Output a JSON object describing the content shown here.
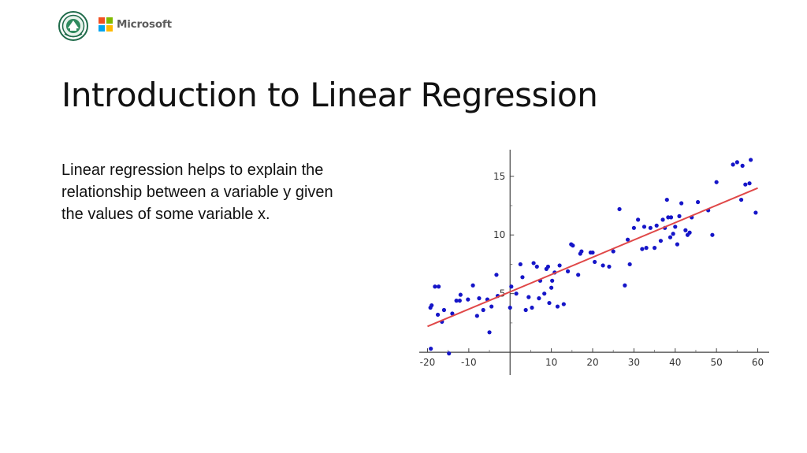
{
  "header": {
    "logos": [
      {
        "name": "seal-logo",
        "icon": "circular-seal-logo"
      },
      {
        "name": "microsoft-logo",
        "text": "Microsoft",
        "colors": [
          "#f25022",
          "#7fba00",
          "#00a4ef",
          "#ffb900"
        ]
      }
    ]
  },
  "slide": {
    "title": "Introduction to Linear Regression",
    "body": "Linear regression helps to explain the relationship between a variable y given the values of some variable x."
  },
  "chart_data": {
    "type": "scatter",
    "title": "",
    "xlabel": "",
    "ylabel": "",
    "xlim": [
      -22,
      62
    ],
    "ylim": [
      -1,
      17
    ],
    "x_ticks": [
      -20,
      -10,
      10,
      20,
      30,
      40,
      50,
      60
    ],
    "x_tick_labels": [
      "-20",
      "-10",
      "10",
      "20",
      "30",
      "40",
      "50",
      "60"
    ],
    "y_ticks": [
      5,
      10,
      15
    ],
    "y_tick_labels": [
      "5",
      "10",
      "15"
    ],
    "grid": false,
    "point_color": "#1515c8",
    "line_color": "#e04848",
    "regression_line": {
      "x": [
        -20,
        60
      ],
      "y": [
        2.2,
        14.0
      ]
    },
    "points": [
      [
        -19.3,
        3.8
      ],
      [
        -19.0,
        4.0
      ],
      [
        -18.2,
        5.6
      ],
      [
        -17.3,
        5.6
      ],
      [
        -17.5,
        3.2
      ],
      [
        -16.5,
        2.6
      ],
      [
        -16.0,
        3.6
      ],
      [
        -14.0,
        3.3
      ],
      [
        -13.0,
        4.4
      ],
      [
        -12.2,
        4.4
      ],
      [
        -12.0,
        4.9
      ],
      [
        -10.2,
        4.5
      ],
      [
        -9.0,
        5.7
      ],
      [
        -8.0,
        3.1
      ],
      [
        -7.5,
        4.6
      ],
      [
        -6.5,
        3.6
      ],
      [
        -5.5,
        4.5
      ],
      [
        -5.0,
        1.7
      ],
      [
        -4.5,
        3.9
      ],
      [
        -3.3,
        6.6
      ],
      [
        -3.0,
        4.8
      ],
      [
        0.0,
        3.8
      ],
      [
        0.3,
        5.6
      ],
      [
        1.5,
        5.0
      ],
      [
        2.5,
        7.5
      ],
      [
        3.0,
        6.4
      ],
      [
        3.8,
        3.6
      ],
      [
        4.5,
        4.7
      ],
      [
        5.3,
        3.8
      ],
      [
        5.7,
        7.6
      ],
      [
        6.5,
        7.3
      ],
      [
        7.0,
        4.6
      ],
      [
        7.3,
        6.1
      ],
      [
        8.3,
        5.0
      ],
      [
        8.8,
        7.1
      ],
      [
        9.2,
        7.3
      ],
      [
        9.5,
        4.2
      ],
      [
        10.0,
        5.5
      ],
      [
        10.2,
        6.1
      ],
      [
        10.8,
        6.8
      ],
      [
        11.5,
        3.9
      ],
      [
        12.0,
        7.4
      ],
      [
        13.0,
        4.1
      ],
      [
        14.0,
        6.9
      ],
      [
        14.8,
        9.2
      ],
      [
        15.2,
        9.1
      ],
      [
        16.5,
        6.6
      ],
      [
        17.0,
        8.4
      ],
      [
        17.3,
        8.6
      ],
      [
        19.5,
        8.5
      ],
      [
        20.0,
        8.5
      ],
      [
        20.5,
        7.7
      ],
      [
        22.5,
        7.4
      ],
      [
        24.0,
        7.3
      ],
      [
        25.0,
        8.6
      ],
      [
        26.5,
        12.2
      ],
      [
        27.8,
        5.7
      ],
      [
        28.5,
        9.6
      ],
      [
        29.0,
        7.5
      ],
      [
        30.0,
        10.6
      ],
      [
        31.0,
        11.3
      ],
      [
        32.0,
        8.8
      ],
      [
        32.5,
        10.7
      ],
      [
        33.0,
        8.9
      ],
      [
        34.0,
        10.6
      ],
      [
        35.0,
        8.9
      ],
      [
        35.5,
        10.8
      ],
      [
        36.5,
        9.5
      ],
      [
        37.0,
        11.3
      ],
      [
        37.5,
        10.6
      ],
      [
        38.0,
        13.0
      ],
      [
        38.3,
        11.5
      ],
      [
        38.8,
        9.8
      ],
      [
        39.0,
        11.5
      ],
      [
        39.5,
        10.1
      ],
      [
        40.0,
        10.7
      ],
      [
        40.5,
        9.2
      ],
      [
        41.0,
        11.6
      ],
      [
        41.5,
        12.7
      ],
      [
        42.5,
        10.4
      ],
      [
        43.0,
        10.0
      ],
      [
        43.5,
        10.2
      ],
      [
        44.0,
        11.5
      ],
      [
        45.5,
        12.8
      ],
      [
        48.0,
        12.1
      ],
      [
        49.0,
        10.0
      ],
      [
        50.0,
        14.5
      ],
      [
        54.0,
        16.0
      ],
      [
        55.0,
        16.2
      ],
      [
        56.0,
        13.0
      ],
      [
        56.3,
        15.9
      ],
      [
        57.0,
        14.3
      ],
      [
        58.0,
        14.4
      ],
      [
        58.3,
        16.4
      ],
      [
        59.5,
        11.9
      ],
      [
        -19.2,
        0.3
      ],
      [
        -14.8,
        -0.1
      ]
    ]
  }
}
